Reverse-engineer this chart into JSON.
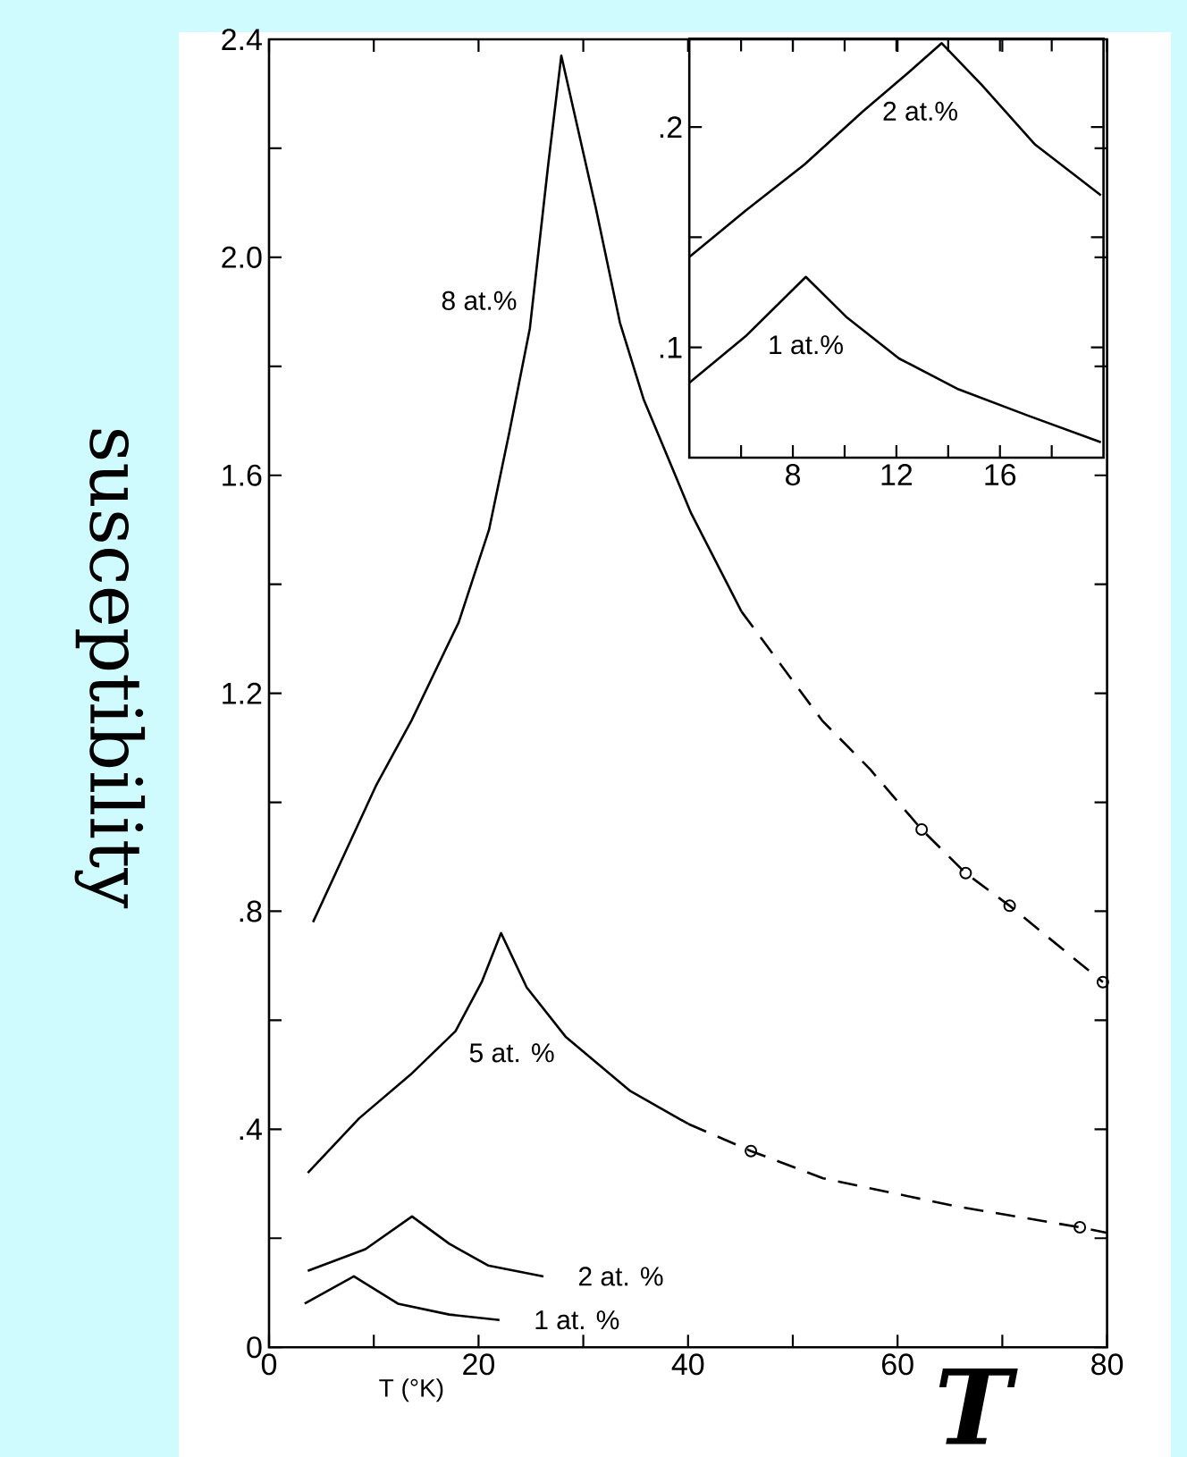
{
  "chart_data": [
    {
      "type": "line",
      "xlabel": "T (°K)",
      "ylabel": "susceptibility",
      "annotations": [
        "T"
      ],
      "xlim": [
        0,
        80
      ],
      "ylim": [
        0,
        2.4
      ],
      "xticks": [
        0,
        {
          "value": 10,
          "label": null
        },
        20,
        {
          "value": 30,
          "label": null
        },
        40,
        {
          "value": 50,
          "label": null
        },
        60,
        {
          "value": 70,
          "label": null
        },
        80
      ],
      "yticks": [
        0,
        {
          "value": 0.2,
          "label": null
        },
        {
          "value": 0.4,
          "label": ".4"
        },
        {
          "value": 0.6,
          "label": null
        },
        {
          "value": 0.8,
          "label": ".8"
        },
        {
          "value": 1.0,
          "label": null
        },
        {
          "value": 1.2,
          "label": "1.2"
        },
        {
          "value": 1.4,
          "label": null
        },
        {
          "value": 1.6,
          "label": "1.6"
        },
        {
          "value": 1.8,
          "label": null
        },
        {
          "value": 2.0,
          "label": "2.0"
        },
        {
          "value": 2.2,
          "label": null
        },
        {
          "value": 2.4,
          "label": "2.4"
        }
      ],
      "series": [
        {
          "name": "8 at.%",
          "color": "#000000",
          "x": [
            4.2,
            10.2,
            13.6,
            18.1,
            21.0,
            22.95,
            24.9,
            26.65,
            27.9,
            31.2,
            33.5,
            35.75,
            40.3,
            45.1
          ],
          "values": [
            0.78,
            1.03,
            1.15,
            1.33,
            1.5,
            1.68,
            1.87,
            2.17,
            2.37,
            2.09,
            1.88,
            1.74,
            1.53,
            1.35
          ]
        },
        {
          "color": "#000000",
          "line_style": "dashed",
          "x": [
            45.1,
            52.8,
            57.4,
            62.3,
            66.5,
            70.7,
            79.6
          ],
          "values": [
            1.35,
            1.15,
            1.06,
            0.95,
            0.87,
            0.81,
            0.67
          ]
        },
        {
          "color": "#000000",
          "x": [
            40.0,
            46.0,
            52.9,
            65.2,
            77.4,
            80
          ],
          "values": [
            0.41,
            0.36,
            0.31,
            0.26,
            0.22,
            0.21
          ],
          "line_style": "dashed"
        },
        {
          "name": "5 at. %",
          "color": "#000000",
          "x": [
            3.7,
            8.6,
            13.5,
            17.8,
            20.3,
            22.15,
            24.6,
            28.3,
            34.5,
            40.0
          ],
          "values": [
            0.32,
            0.42,
            0.5,
            0.58,
            0.67,
            0.76,
            0.66,
            0.57,
            0.47,
            0.41
          ]
        },
        {
          "name": "2 at. %",
          "color": "#000000",
          "x": [
            3.7,
            9.2,
            13.65,
            17.2,
            20.9,
            26.2
          ],
          "values": [
            0.14,
            0.18,
            0.24,
            0.19,
            0.15,
            0.13
          ]
        },
        {
          "name": "1 at. %",
          "color": "#000000",
          "x": [
            3.4,
            8.1,
            12.3,
            17.2,
            22.0
          ],
          "values": [
            0.08,
            0.13,
            0.08,
            0.06,
            0.05
          ]
        },
        {
          "type": "scatter",
          "marker": "circle",
          "color": "#000000",
          "x": [
            46.0,
            62.3,
            66.5,
            70.7,
            77.4,
            79.6
          ],
          "values": [
            0.36,
            0.95,
            0.87,
            0.81,
            0.22,
            0.67
          ]
        }
      ]
    },
    {
      "type": "line",
      "xlim": [
        4,
        20
      ],
      "ylim": [
        0.05,
        0.24
      ],
      "xticks": [
        {
          "value": 6,
          "label": null
        },
        8,
        {
          "value": 10,
          "label": null
        },
        12,
        {
          "value": 14,
          "label": null
        },
        16,
        {
          "value": 18,
          "label": null
        }
      ],
      "yticks": [
        {
          "value": 0.1,
          "label": ".1"
        },
        {
          "value": 0.15,
          "label": null
        },
        {
          "value": 0.2,
          "label": ".2"
        }
      ],
      "series": [
        {
          "name": "2 at.%",
          "color": "#000000",
          "x": [
            4,
            6.17,
            8.45,
            10.7,
            12.3,
            13.75,
            15.3,
            17.36,
            19.9
          ],
          "values": [
            0.141,
            0.162,
            0.183,
            0.207,
            0.223,
            0.238,
            0.219,
            0.192,
            0.169
          ]
        },
        {
          "name": "1 at.%",
          "color": "#000000",
          "x": [
            4,
            6.17,
            8.5,
            10.05,
            12.1,
            14.4,
            17.1,
            19.9
          ],
          "values": [
            0.084,
            0.105,
            0.132,
            0.114,
            0.095,
            0.081,
            0.069,
            0.057
          ]
        }
      ]
    }
  ]
}
